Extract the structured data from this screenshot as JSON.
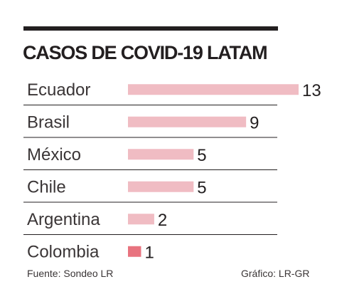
{
  "chart_data": {
    "type": "bar",
    "orientation": "horizontal",
    "title": "CASOS DE COVID-19 LATAM",
    "categories": [
      "Ecuador",
      "Brasil",
      "México",
      "Chile",
      "Argentina",
      "Colombia"
    ],
    "values": [
      13,
      9,
      5,
      5,
      2,
      1
    ],
    "xlim": [
      0,
      13
    ],
    "grid": false,
    "legend": "none"
  },
  "colors": {
    "bar": "#f0bcc3",
    "bar_highlight": "#e8737f",
    "separator": "#231f20",
    "top_rule": "#231f20"
  },
  "footer": {
    "source": "Fuente: Sondeo LR",
    "credit": "Gráfico: LR-GR"
  }
}
